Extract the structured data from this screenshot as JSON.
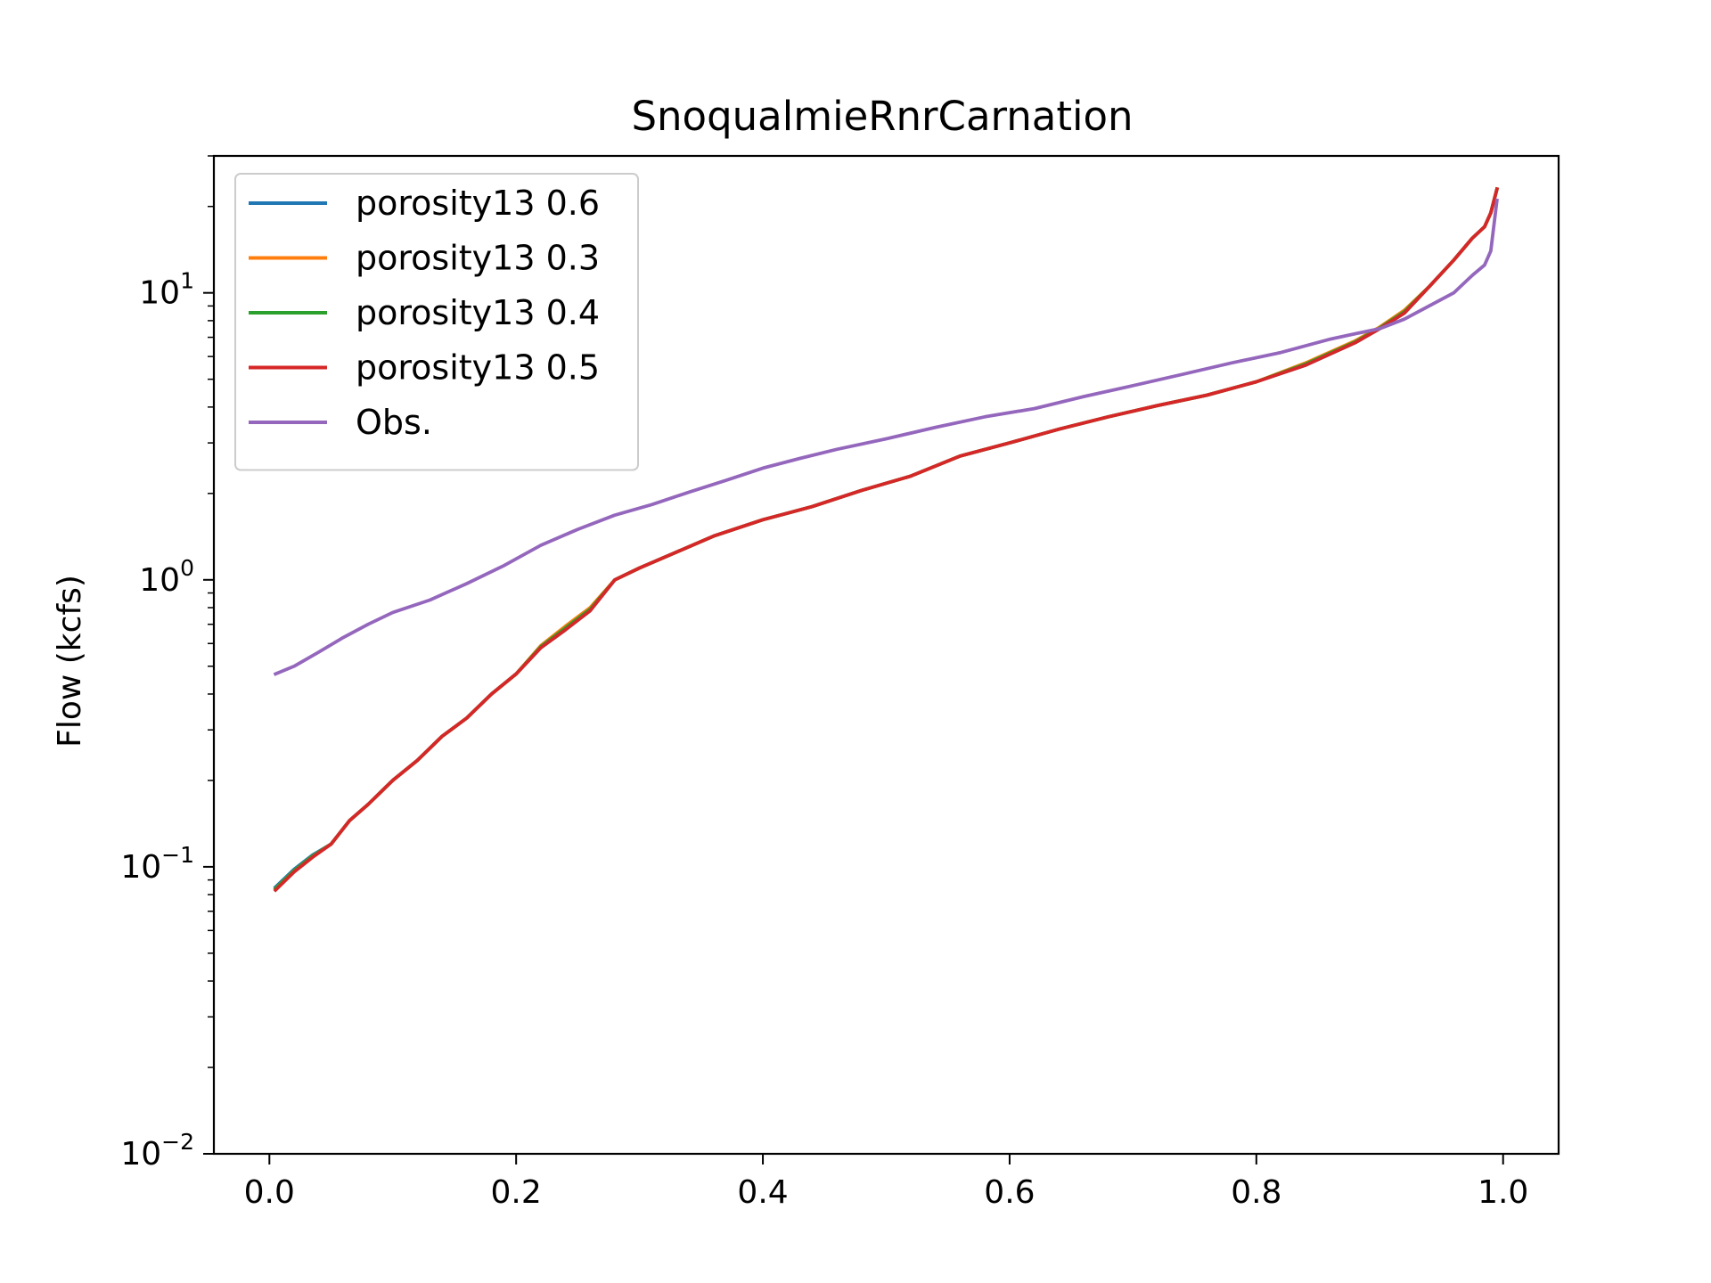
{
  "chart_data": {
    "type": "line",
    "title": "SnoqualmieRnrCarnation",
    "xlabel": "",
    "ylabel": "Flow (kcfs)",
    "yscale": "log",
    "xlim": [
      -0.045,
      1.045
    ],
    "ylim": [
      0.01,
      30
    ],
    "xticks": [
      {
        "value": 0.0,
        "label": "0.0"
      },
      {
        "value": 0.2,
        "label": "0.2"
      },
      {
        "value": 0.4,
        "label": "0.4"
      },
      {
        "value": 0.6,
        "label": "0.6"
      },
      {
        "value": 0.8,
        "label": "0.8"
      },
      {
        "value": 1.0,
        "label": "1.0"
      }
    ],
    "yticks": [
      {
        "value": 0.01,
        "base": "10",
        "exp": "−2"
      },
      {
        "value": 0.1,
        "base": "10",
        "exp": "−1"
      },
      {
        "value": 1,
        "base": "10",
        "exp": "0"
      },
      {
        "value": 10,
        "base": "10",
        "exp": "1"
      }
    ],
    "grid": false,
    "legend_position": "top-left",
    "series": [
      {
        "name": "porosity13 0.6",
        "color": "#1f77b4",
        "x": [
          0.005,
          0.02,
          0.035,
          0.05,
          0.065,
          0.08,
          0.1,
          0.12,
          0.14,
          0.16,
          0.18,
          0.2,
          0.22,
          0.24,
          0.26,
          0.28,
          0.3,
          0.33,
          0.36,
          0.4,
          0.44,
          0.48,
          0.52,
          0.56,
          0.6,
          0.64,
          0.68,
          0.72,
          0.76,
          0.8,
          0.84,
          0.88,
          0.9,
          0.92,
          0.94,
          0.96,
          0.975,
          0.985,
          0.99,
          0.995
        ],
        "y": [
          0.085,
          0.098,
          0.11,
          0.12,
          0.145,
          0.165,
          0.2,
          0.235,
          0.285,
          0.33,
          0.4,
          0.47,
          0.58,
          0.67,
          0.78,
          1.0,
          1.1,
          1.25,
          1.42,
          1.62,
          1.8,
          2.05,
          2.3,
          2.7,
          3.0,
          3.35,
          3.7,
          4.05,
          4.4,
          4.9,
          5.6,
          6.7,
          7.5,
          8.5,
          10.5,
          13.0,
          15.5,
          17.0,
          19.0,
          23.0
        ]
      },
      {
        "name": "porosity13 0.3",
        "color": "#ff7f0e",
        "x": [
          0.005,
          0.02,
          0.035,
          0.05,
          0.065,
          0.08,
          0.1,
          0.12,
          0.14,
          0.16,
          0.18,
          0.2,
          0.22,
          0.24,
          0.26,
          0.28,
          0.3,
          0.33,
          0.36,
          0.4,
          0.44,
          0.48,
          0.52,
          0.56,
          0.6,
          0.64,
          0.68,
          0.72,
          0.76,
          0.8,
          0.84,
          0.88,
          0.9,
          0.92,
          0.94,
          0.96,
          0.975,
          0.985,
          0.99,
          0.995
        ],
        "y": [
          0.084,
          0.097,
          0.109,
          0.12,
          0.145,
          0.165,
          0.2,
          0.235,
          0.285,
          0.33,
          0.4,
          0.47,
          0.59,
          0.69,
          0.8,
          1.0,
          1.1,
          1.25,
          1.42,
          1.62,
          1.8,
          2.05,
          2.3,
          2.7,
          3.0,
          3.35,
          3.7,
          4.05,
          4.4,
          4.9,
          5.7,
          6.8,
          7.6,
          8.7,
          10.5,
          13.0,
          15.5,
          17.0,
          19.0,
          23.0
        ]
      },
      {
        "name": "porosity13 0.4",
        "color": "#2ca02c",
        "x": [
          0.005,
          0.02,
          0.035,
          0.05,
          0.065,
          0.08,
          0.1,
          0.12,
          0.14,
          0.16,
          0.18,
          0.2,
          0.22,
          0.24,
          0.26,
          0.28,
          0.3,
          0.33,
          0.36,
          0.4,
          0.44,
          0.48,
          0.52,
          0.56,
          0.6,
          0.64,
          0.68,
          0.72,
          0.76,
          0.8,
          0.84,
          0.88,
          0.9,
          0.92,
          0.94,
          0.96,
          0.975,
          0.985,
          0.99,
          0.995
        ],
        "y": [
          0.084,
          0.097,
          0.109,
          0.12,
          0.145,
          0.165,
          0.2,
          0.235,
          0.285,
          0.33,
          0.4,
          0.47,
          0.585,
          0.68,
          0.79,
          1.0,
          1.1,
          1.25,
          1.42,
          1.62,
          1.8,
          2.05,
          2.3,
          2.7,
          3.0,
          3.35,
          3.7,
          4.05,
          4.4,
          4.9,
          5.65,
          6.75,
          7.55,
          8.6,
          10.5,
          13.0,
          15.5,
          17.0,
          19.0,
          23.0
        ]
      },
      {
        "name": "porosity13 0.5",
        "color": "#d62728",
        "x": [
          0.005,
          0.02,
          0.035,
          0.05,
          0.065,
          0.08,
          0.1,
          0.12,
          0.14,
          0.16,
          0.18,
          0.2,
          0.22,
          0.24,
          0.26,
          0.28,
          0.3,
          0.33,
          0.36,
          0.4,
          0.44,
          0.48,
          0.52,
          0.56,
          0.6,
          0.64,
          0.68,
          0.72,
          0.76,
          0.8,
          0.84,
          0.88,
          0.9,
          0.92,
          0.94,
          0.96,
          0.975,
          0.985,
          0.99,
          0.995
        ],
        "y": [
          0.083,
          0.096,
          0.108,
          0.12,
          0.145,
          0.165,
          0.2,
          0.235,
          0.285,
          0.33,
          0.4,
          0.47,
          0.58,
          0.67,
          0.78,
          1.0,
          1.1,
          1.25,
          1.42,
          1.62,
          1.8,
          2.05,
          2.3,
          2.7,
          3.0,
          3.35,
          3.7,
          4.05,
          4.4,
          4.9,
          5.6,
          6.7,
          7.5,
          8.5,
          10.5,
          13.0,
          15.5,
          17.0,
          19.0,
          23.0
        ]
      },
      {
        "name": "Obs.",
        "color": "#9467bd",
        "x": [
          0.005,
          0.02,
          0.04,
          0.06,
          0.08,
          0.1,
          0.13,
          0.16,
          0.19,
          0.22,
          0.25,
          0.28,
          0.31,
          0.34,
          0.37,
          0.4,
          0.43,
          0.46,
          0.5,
          0.54,
          0.58,
          0.62,
          0.66,
          0.7,
          0.74,
          0.78,
          0.82,
          0.86,
          0.88,
          0.9,
          0.92,
          0.94,
          0.96,
          0.975,
          0.985,
          0.99,
          0.995
        ],
        "y": [
          0.47,
          0.5,
          0.56,
          0.63,
          0.7,
          0.77,
          0.85,
          0.97,
          1.12,
          1.32,
          1.5,
          1.68,
          1.83,
          2.02,
          2.22,
          2.45,
          2.65,
          2.85,
          3.1,
          3.4,
          3.7,
          3.95,
          4.35,
          4.75,
          5.2,
          5.7,
          6.2,
          6.9,
          7.2,
          7.5,
          8.1,
          9.0,
          10.0,
          11.5,
          12.5,
          14.0,
          21.0
        ]
      }
    ]
  }
}
